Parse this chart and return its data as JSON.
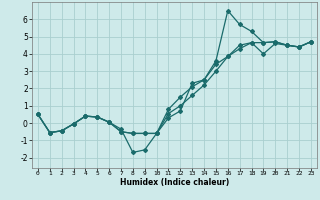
{
  "xlabel": "Humidex (Indice chaleur)",
  "background_color": "#ceeaea",
  "grid_color": "#aacfcf",
  "line_color": "#1a6b6b",
  "xlim": [
    -0.5,
    23.5
  ],
  "ylim": [
    -2.6,
    7.0
  ],
  "xticks": [
    0,
    1,
    2,
    3,
    4,
    5,
    6,
    7,
    8,
    9,
    10,
    11,
    12,
    13,
    14,
    15,
    16,
    17,
    18,
    19,
    20,
    21,
    22,
    23
  ],
  "yticks": [
    -2,
    -1,
    0,
    1,
    2,
    3,
    4,
    5,
    6
  ],
  "line1_x": [
    0,
    1,
    2,
    3,
    4,
    5,
    6,
    7,
    8,
    9,
    10,
    11,
    12,
    13,
    14,
    15,
    16,
    17,
    18,
    19,
    20,
    21,
    22,
    23
  ],
  "line1_y": [
    0.5,
    -0.55,
    -0.45,
    -0.05,
    0.4,
    0.35,
    0.05,
    -0.35,
    -1.7,
    -1.55,
    -0.6,
    0.3,
    0.7,
    2.3,
    2.5,
    3.6,
    6.5,
    5.7,
    5.3,
    4.65,
    4.7,
    4.5,
    4.4,
    4.7
  ],
  "line2_x": [
    0,
    1,
    2,
    3,
    4,
    5,
    6,
    7,
    8,
    9,
    10,
    11,
    12,
    13,
    14,
    15,
    16,
    17,
    18,
    19,
    20,
    21,
    22,
    23
  ],
  "line2_y": [
    0.5,
    -0.55,
    -0.45,
    -0.05,
    0.4,
    0.35,
    0.05,
    -0.5,
    -0.6,
    -0.6,
    -0.6,
    0.8,
    1.5,
    2.1,
    2.5,
    3.4,
    3.85,
    4.5,
    4.65,
    4.65,
    4.7,
    4.5,
    4.4,
    4.7
  ],
  "line3_x": [
    0,
    1,
    2,
    3,
    4,
    5,
    6,
    7,
    8,
    9,
    10,
    11,
    12,
    13,
    14,
    15,
    16,
    17,
    18,
    19,
    20,
    21,
    22,
    23
  ],
  "line3_y": [
    0.5,
    -0.55,
    -0.45,
    -0.05,
    0.4,
    0.35,
    0.05,
    -0.5,
    -0.6,
    -0.6,
    -0.6,
    0.55,
    1.0,
    1.6,
    2.2,
    3.0,
    3.85,
    4.3,
    4.65,
    4.0,
    4.6,
    4.5,
    4.4,
    4.7
  ]
}
